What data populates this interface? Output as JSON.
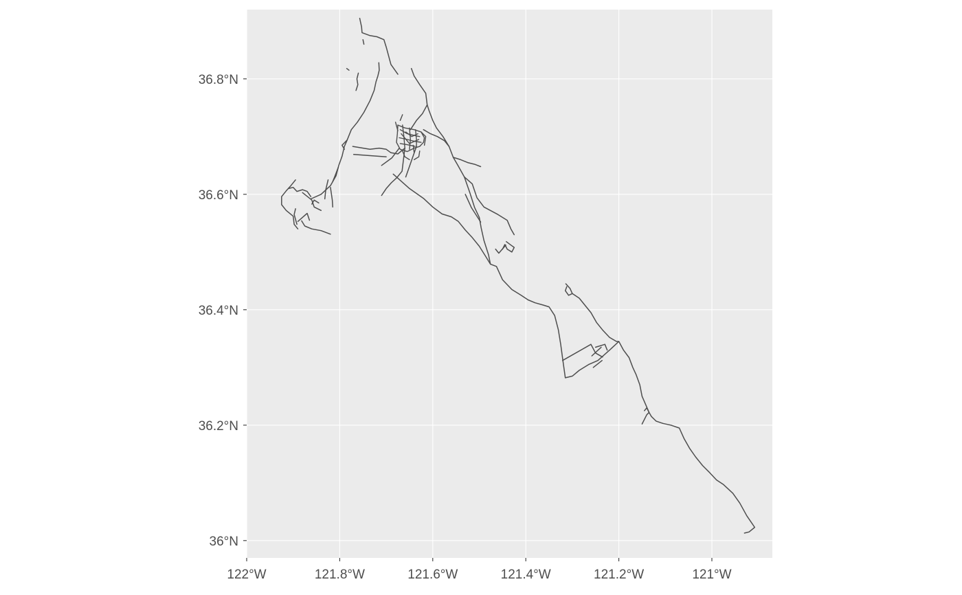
{
  "chart_data": {
    "type": "map",
    "geometry": "linestring",
    "colors": {
      "panel": "#ebebeb",
      "grid": "#ffffff",
      "line": "#4d4d4d",
      "tick_text": "#4d4d4d",
      "tick": "#333333"
    },
    "xlim": [
      -122.0,
      -120.87
    ],
    "ylim": [
      35.97,
      36.92
    ],
    "x_ticks": [
      {
        "value": -122.0,
        "label": "122°W"
      },
      {
        "value": -121.8,
        "label": "121.8°W"
      },
      {
        "value": -121.6,
        "label": "121.6°W"
      },
      {
        "value": -121.4,
        "label": "121.4°W"
      },
      {
        "value": -121.2,
        "label": "121.2°W"
      },
      {
        "value": -121.0,
        "label": "121°W"
      }
    ],
    "y_ticks": [
      {
        "value": 36.0,
        "label": "36°N"
      },
      {
        "value": 36.2,
        "label": "36.2°N"
      },
      {
        "value": 36.4,
        "label": "36.4°N"
      },
      {
        "value": 36.6,
        "label": "36.6°N"
      },
      {
        "value": 36.8,
        "label": "36.8°N"
      }
    ],
    "grid": true,
    "roads": [
      [
        [
          -121.757,
          36.905
        ],
        [
          -121.753,
          36.89
        ],
        [
          -121.752,
          36.88
        ],
        [
          -121.735,
          36.875
        ],
        [
          -121.72,
          36.873
        ],
        [
          -121.705,
          36.868
        ],
        [
          -121.7,
          36.855
        ],
        [
          -121.695,
          36.84
        ],
        [
          -121.69,
          36.825
        ],
        [
          -121.675,
          36.808
        ]
      ],
      [
        [
          -121.716,
          36.828
        ],
        [
          -121.715,
          36.815
        ],
        [
          -121.718,
          36.805
        ],
        [
          -121.722,
          36.795
        ],
        [
          -121.726,
          36.78
        ],
        [
          -121.735,
          36.762
        ],
        [
          -121.748,
          36.742
        ],
        [
          -121.762,
          36.725
        ],
        [
          -121.775,
          36.712
        ],
        [
          -121.784,
          36.694
        ],
        [
          -121.79,
          36.683
        ],
        [
          -121.795,
          36.666
        ],
        [
          -121.802,
          36.65
        ],
        [
          -121.808,
          36.632
        ],
        [
          -121.82,
          36.615
        ],
        [
          -121.84,
          36.6
        ],
        [
          -121.862,
          36.592
        ]
      ],
      [
        [
          -121.772,
          36.683
        ],
        [
          -121.735,
          36.678
        ],
        [
          -121.715,
          36.68
        ],
        [
          -121.7,
          36.678
        ],
        [
          -121.69,
          36.672
        ],
        [
          -121.675,
          36.67
        ],
        [
          -121.66,
          36.68
        ]
      ],
      [
        [
          -121.784,
          36.694
        ],
        [
          -121.795,
          36.685
        ],
        [
          -121.79,
          36.678
        ]
      ],
      [
        [
          -121.66,
          36.68
        ],
        [
          -121.666,
          36.64
        ],
        [
          -121.677,
          36.629
        ],
        [
          -121.689,
          36.62
        ],
        [
          -121.7,
          36.61
        ],
        [
          -121.71,
          36.598
        ]
      ],
      [
        [
          -121.672,
          36.68
        ],
        [
          -121.688,
          36.663
        ],
        [
          -121.71,
          36.65
        ]
      ],
      [
        [
          -121.77,
          36.669
        ],
        [
          -121.7,
          36.665
        ]
      ],
      [
        [
          -121.635,
          36.683
        ],
        [
          -121.658,
          36.63
        ]
      ],
      [
        [
          -121.685,
          36.635
        ],
        [
          -121.65,
          36.61
        ],
        [
          -121.62,
          36.593
        ],
        [
          -121.6,
          36.578
        ],
        [
          -121.58,
          36.566
        ],
        [
          -121.56,
          36.561
        ],
        [
          -121.545,
          36.553
        ],
        [
          -121.53,
          36.538
        ],
        [
          -121.515,
          36.525
        ],
        [
          -121.5,
          36.51
        ],
        [
          -121.486,
          36.492
        ],
        [
          -121.476,
          36.479
        ],
        [
          -121.463,
          36.475
        ],
        [
          -121.45,
          36.452
        ],
        [
          -121.43,
          36.435
        ],
        [
          -121.41,
          36.425
        ],
        [
          -121.395,
          36.417
        ],
        [
          -121.38,
          36.412
        ],
        [
          -121.362,
          36.408
        ],
        [
          -121.35,
          36.405
        ],
        [
          -121.338,
          36.39
        ],
        [
          -121.33,
          36.365
        ],
        [
          -121.325,
          36.34
        ],
        [
          -121.32,
          36.31
        ],
        [
          -121.315,
          36.282
        ],
        [
          -121.3,
          36.285
        ],
        [
          -121.285,
          36.295
        ],
        [
          -121.265,
          36.305
        ],
        [
          -121.245,
          36.312
        ],
        [
          -121.22,
          36.33
        ],
        [
          -121.2,
          36.345
        ]
      ],
      [
        [
          -121.321,
          36.312
        ],
        [
          -121.26,
          36.34
        ],
        [
          -121.25,
          36.325
        ],
        [
          -121.235,
          36.318
        ]
      ],
      [
        [
          -121.25,
          36.335
        ],
        [
          -121.23,
          36.34
        ],
        [
          -121.225,
          36.33
        ]
      ],
      [
        [
          -121.258,
          36.32
        ],
        [
          -121.238,
          36.335
        ]
      ],
      [
        [
          -121.255,
          36.3
        ],
        [
          -121.236,
          36.312
        ]
      ],
      [
        [
          -121.312,
          36.44
        ],
        [
          -121.315,
          36.433
        ],
        [
          -121.308,
          36.425
        ],
        [
          -121.3,
          36.428
        ],
        [
          -121.305,
          36.437
        ],
        [
          -121.314,
          36.445
        ]
      ],
      [
        [
          -121.3,
          36.428
        ],
        [
          -121.285,
          36.42
        ],
        [
          -121.27,
          36.405
        ],
        [
          -121.26,
          36.395
        ],
        [
          -121.248,
          36.378
        ],
        [
          -121.235,
          36.365
        ],
        [
          -121.22,
          36.352
        ],
        [
          -121.205,
          36.345
        ],
        [
          -121.2,
          36.345
        ],
        [
          -121.19,
          36.33
        ],
        [
          -121.178,
          36.317
        ],
        [
          -121.17,
          36.3
        ],
        [
          -121.163,
          36.288
        ],
        [
          -121.155,
          36.27
        ],
        [
          -121.15,
          36.25
        ],
        [
          -121.142,
          36.235
        ],
        [
          -121.135,
          36.222
        ],
        [
          -121.13,
          36.215
        ],
        [
          -121.12,
          36.207
        ],
        [
          -121.105,
          36.203
        ],
        [
          -121.088,
          36.2
        ],
        [
          -121.07,
          36.195
        ],
        [
          -121.06,
          36.177
        ],
        [
          -121.048,
          36.16
        ],
        [
          -121.035,
          36.145
        ],
        [
          -121.02,
          36.13
        ],
        [
          -121.005,
          36.118
        ],
        [
          -120.99,
          36.105
        ],
        [
          -120.975,
          36.097
        ],
        [
          -120.955,
          36.082
        ],
        [
          -120.94,
          36.065
        ],
        [
          -120.925,
          36.043
        ],
        [
          -120.908,
          36.023
        ],
        [
          -120.92,
          36.015
        ],
        [
          -120.93,
          36.013
        ]
      ],
      [
        [
          -121.135,
          36.222
        ],
        [
          -121.14,
          36.218
        ],
        [
          -121.15,
          36.202
        ]
      ],
      [
        [
          -121.135,
          36.222
        ],
        [
          -121.14,
          36.23
        ],
        [
          -121.145,
          36.225
        ]
      ],
      [
        [
          -121.612,
          36.755
        ],
        [
          -121.608,
          36.745
        ],
        [
          -121.6,
          36.728
        ],
        [
          -121.592,
          36.715
        ],
        [
          -121.578,
          36.7
        ],
        [
          -121.565,
          36.683
        ],
        [
          -121.556,
          36.664
        ],
        [
          -121.546,
          36.65
        ],
        [
          -121.532,
          36.63
        ],
        [
          -121.52,
          36.602
        ],
        [
          -121.51,
          36.577
        ],
        [
          -121.5,
          36.56
        ],
        [
          -121.496,
          36.542
        ],
        [
          -121.49,
          36.52
        ],
        [
          -121.48,
          36.495
        ],
        [
          -121.476,
          36.479
        ]
      ],
      [
        [
          -121.612,
          36.755
        ],
        [
          -121.622,
          36.74
        ],
        [
          -121.635,
          36.728
        ],
        [
          -121.648,
          36.712
        ]
      ],
      [
        [
          -121.612,
          36.755
        ],
        [
          -121.615,
          36.775
        ],
        [
          -121.628,
          36.79
        ],
        [
          -121.64,
          36.805
        ],
        [
          -121.646,
          36.818
        ]
      ],
      [
        [
          -121.62,
          36.712
        ],
        [
          -121.605,
          36.705
        ],
        [
          -121.59,
          36.7
        ],
        [
          -121.575,
          36.693
        ],
        [
          -121.565,
          36.683
        ]
      ],
      [
        [
          -121.556,
          36.664
        ],
        [
          -121.54,
          36.66
        ],
        [
          -121.525,
          36.655
        ],
        [
          -121.51,
          36.652
        ],
        [
          -121.497,
          36.648
        ]
      ],
      [
        [
          -121.532,
          36.63
        ],
        [
          -121.515,
          36.618
        ],
        [
          -121.505,
          36.594
        ],
        [
          -121.49,
          36.578
        ],
        [
          -121.46,
          36.565
        ],
        [
          -121.44,
          36.555
        ],
        [
          -121.432,
          36.54
        ],
        [
          -121.425,
          36.53
        ]
      ],
      [
        [
          -121.53,
          36.6
        ],
        [
          -121.517,
          36.577
        ],
        [
          -121.497,
          36.552
        ]
      ],
      [
        [
          -121.442,
          36.518
        ],
        [
          -121.432,
          36.512
        ],
        [
          -121.425,
          36.508
        ],
        [
          -121.43,
          36.5
        ],
        [
          -121.44,
          36.505
        ],
        [
          -121.445,
          36.513
        ],
        [
          -121.45,
          36.505
        ]
      ],
      [
        [
          -121.465,
          36.505
        ],
        [
          -121.458,
          36.498
        ],
        [
          -121.443,
          36.512
        ]
      ],
      [
        [
          -121.895,
          36.625
        ],
        [
          -121.905,
          36.615
        ],
        [
          -121.915,
          36.606
        ],
        [
          -121.925,
          36.596
        ],
        [
          -121.925,
          36.582
        ],
        [
          -121.915,
          36.572
        ],
        [
          -121.9,
          36.562
        ],
        [
          -121.898,
          36.548
        ],
        [
          -121.89,
          36.54
        ]
      ],
      [
        [
          -121.91,
          36.61
        ],
        [
          -121.9,
          36.612
        ],
        [
          -121.892,
          36.605
        ],
        [
          -121.88,
          36.608
        ],
        [
          -121.87,
          36.605
        ],
        [
          -121.862,
          36.596
        ]
      ],
      [
        [
          -121.88,
          36.603
        ],
        [
          -121.86,
          36.59
        ],
        [
          -121.855,
          36.578
        ],
        [
          -121.84,
          36.572
        ]
      ],
      [
        [
          -121.845,
          36.585
        ],
        [
          -121.855,
          36.59
        ],
        [
          -121.86,
          36.583
        ]
      ],
      [
        [
          -121.82,
          36.612
        ],
        [
          -121.816,
          36.59
        ],
        [
          -121.815,
          36.578
        ]
      ],
      [
        [
          -121.825,
          36.625
        ],
        [
          -121.83,
          36.608
        ],
        [
          -121.832,
          36.592
        ]
      ],
      [
        [
          -121.803,
          36.647
        ],
        [
          -121.81,
          36.632
        ],
        [
          -121.815,
          36.622
        ]
      ],
      [
        [
          -121.882,
          36.554
        ],
        [
          -121.875,
          36.545
        ],
        [
          -121.86,
          36.54
        ],
        [
          -121.84,
          36.537
        ],
        [
          -121.82,
          36.531
        ]
      ],
      [
        [
          -121.89,
          36.553
        ],
        [
          -121.88,
          36.56
        ],
        [
          -121.87,
          36.567
        ],
        [
          -121.865,
          36.555
        ]
      ],
      [
        [
          -121.892,
          36.548
        ],
        [
          -121.898,
          36.565
        ],
        [
          -121.895,
          36.575
        ]
      ],
      [
        [
          -121.785,
          36.818
        ],
        [
          -121.78,
          36.815
        ]
      ],
      [
        [
          -121.76,
          36.81
        ],
        [
          -121.763,
          36.8
        ],
        [
          -121.761,
          36.79
        ],
        [
          -121.765,
          36.78
        ]
      ],
      [
        [
          -121.75,
          36.868
        ],
        [
          -121.748,
          36.86
        ]
      ]
    ],
    "dense_area": [
      [
        [
          -121.675,
          36.72
        ],
        [
          -121.66,
          36.715
        ],
        [
          -121.64,
          36.712
        ],
        [
          -121.625,
          36.708
        ],
        [
          -121.618,
          36.698
        ],
        [
          -121.62,
          36.69
        ],
        [
          -121.628,
          36.683
        ],
        [
          -121.64,
          36.68
        ],
        [
          -121.655,
          36.674
        ],
        [
          -121.67,
          36.678
        ],
        [
          -121.678,
          36.69
        ],
        [
          -121.676,
          36.705
        ],
        [
          -121.675,
          36.72
        ]
      ],
      [
        [
          -121.67,
          36.712
        ],
        [
          -121.655,
          36.705
        ],
        [
          -121.64,
          36.702
        ],
        [
          -121.628,
          36.7
        ]
      ],
      [
        [
          -121.672,
          36.698
        ],
        [
          -121.655,
          36.695
        ],
        [
          -121.64,
          36.692
        ],
        [
          -121.625,
          36.69
        ]
      ],
      [
        [
          -121.67,
          36.688
        ],
        [
          -121.655,
          36.686
        ],
        [
          -121.638,
          36.683
        ]
      ],
      [
        [
          -121.665,
          36.72
        ],
        [
          -121.662,
          36.7
        ],
        [
          -121.66,
          36.68
        ]
      ],
      [
        [
          -121.65,
          36.715
        ],
        [
          -121.648,
          36.695
        ],
        [
          -121.65,
          36.678
        ]
      ],
      [
        [
          -121.637,
          36.712
        ],
        [
          -121.635,
          36.695
        ],
        [
          -121.635,
          36.683
        ]
      ],
      [
        [
          -121.658,
          36.708
        ],
        [
          -121.645,
          36.7
        ],
        [
          -121.632,
          36.705
        ]
      ],
      [
        [
          -121.668,
          36.705
        ],
        [
          -121.65,
          36.688
        ],
        [
          -121.63,
          36.695
        ]
      ],
      [
        [
          -121.67,
          36.728
        ],
        [
          -121.665,
          36.738
        ]
      ],
      [
        [
          -121.68,
          36.725
        ],
        [
          -121.675,
          36.71
        ]
      ],
      [
        [
          -121.665,
          36.675
        ],
        [
          -121.66,
          36.665
        ],
        [
          -121.65,
          36.66
        ]
      ],
      [
        [
          -121.625,
          36.708
        ],
        [
          -121.615,
          36.7
        ],
        [
          -121.618,
          36.685
        ]
      ],
      [
        [
          -121.642,
          36.685
        ],
        [
          -121.64,
          36.672
        ]
      ],
      [
        [
          -121.628,
          36.675
        ],
        [
          -121.63,
          36.665
        ],
        [
          -121.64,
          36.66
        ]
      ]
    ]
  }
}
